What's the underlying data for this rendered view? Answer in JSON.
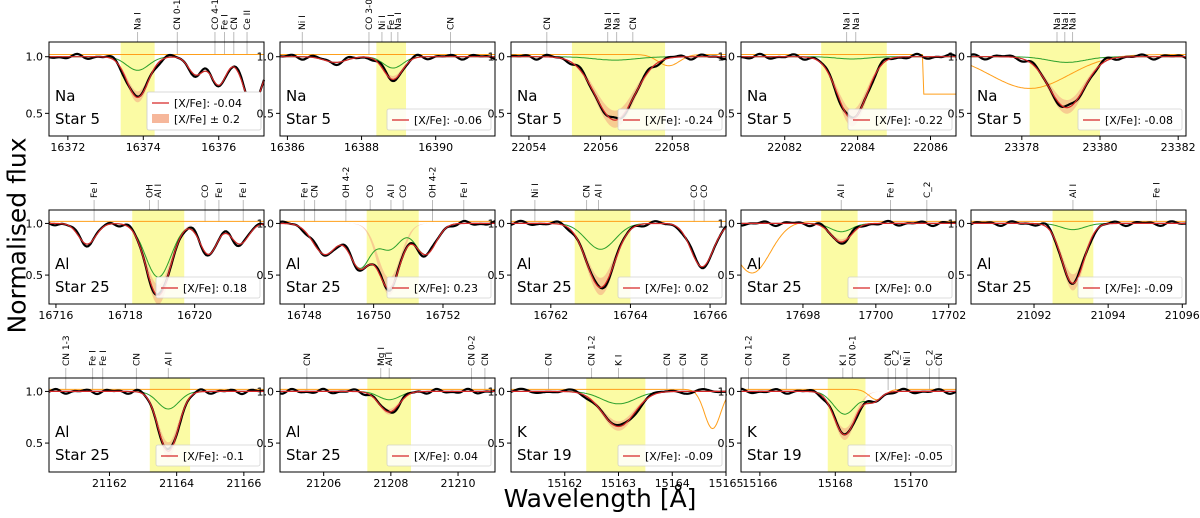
{
  "figure": {
    "xlabel": "Wavelength [Å]",
    "ylabel": "Normalised flux",
    "legend_label_errband": "[X/Fe] ± 0.2",
    "colors": {
      "observed": "#000000",
      "fit": "#d62728",
      "band": "#f4a582",
      "green": "#2ca02c",
      "orange": "#ff9f1a",
      "highlight": "#fbfba4"
    }
  },
  "chart_data": [
    {
      "type": "line",
      "element": "Na",
      "star": "Star 5",
      "legend": "[X/Fe]: -0.04",
      "show_band_legend": true,
      "xlim": [
        16371.5,
        16377.2
      ],
      "xticks": [
        16372,
        16374,
        16376
      ],
      "ylim": [
        0.3,
        1.13
      ],
      "yticks": [
        0.5,
        1.0
      ],
      "highlight": [
        16373.4,
        16374.3
      ],
      "line_center": 16373.85,
      "depth": 0.36,
      "width": 0.28,
      "lines": [
        {
          "label": "Na I",
          "x": 16373.85
        },
        {
          "label": "CN 0-1",
          "x": 16374.9
        },
        {
          "label": "CO 4-1",
          "x": 16375.9
        },
        {
          "label": "Fe I",
          "x": 16376.15
        },
        {
          "label": "CN",
          "x": 16376.4
        },
        {
          "label": "Ce II",
          "x": 16376.75
        }
      ],
      "extra": [
        {
          "x": 16375.4,
          "d": 0.16,
          "w": 0.2
        },
        {
          "x": 16376.0,
          "d": 0.25,
          "w": 0.2
        },
        {
          "x": 16376.9,
          "d": 0.42,
          "w": 0.25
        }
      ],
      "green_depth": 0.12,
      "orange_feature": null
    },
    {
      "type": "line",
      "element": "Na",
      "star": "Star 5",
      "legend": "[X/Fe]: -0.06",
      "show_band_legend": false,
      "xlim": [
        16385.8,
        16391.6
      ],
      "xticks": [
        16386,
        16388,
        16390
      ],
      "ylim": [
        0.3,
        1.13
      ],
      "yticks": [
        0.5,
        1.0
      ],
      "highlight": [
        16388.4,
        16389.2
      ],
      "line_center": 16388.85,
      "depth": 0.2,
      "width": 0.25,
      "lines": [
        {
          "label": "Ni I",
          "x": 16386.4
        },
        {
          "label": "CO 3-0",
          "x": 16388.2
        },
        {
          "label": "Ni I",
          "x": 16388.55
        },
        {
          "label": "Fe I",
          "x": 16388.8
        },
        {
          "label": "Na I",
          "x": 16388.98
        },
        {
          "label": "CN",
          "x": 16390.4
        }
      ],
      "extra": [
        {
          "x": 16387.3,
          "d": 0.05,
          "w": 0.3
        }
      ],
      "green_depth": 0.1,
      "orange_feature": null
    },
    {
      "type": "line",
      "element": "Na",
      "star": "Star 5",
      "legend": "[X/Fe]: -0.24",
      "show_band_legend": false,
      "xlim": [
        22053.5,
        22059.5
      ],
      "xticks": [
        22054,
        22056,
        22058
      ],
      "ylim": [
        0.3,
        1.13
      ],
      "yticks": [
        0.5,
        1.0
      ],
      "highlight": [
        22055.2,
        22057.8
      ],
      "line_center": 22056.4,
      "depth": 0.56,
      "width": 0.55,
      "lines": [
        {
          "label": "CN",
          "x": 22054.5
        },
        {
          "label": "Na I",
          "x": 22056.2
        },
        {
          "label": "Na I",
          "x": 22056.45
        },
        {
          "label": "CN",
          "x": 22056.9
        }
      ],
      "extra": [],
      "green_depth": 0.03,
      "orange_feature": {
        "x": 22057.9,
        "d": 0.1,
        "w": 0.3
      }
    },
    {
      "type": "line",
      "element": "Na",
      "star": "Star 5",
      "legend": "[X/Fe]: -0.22",
      "show_band_legend": false,
      "xlim": [
        22080.8,
        22086.7
      ],
      "xticks": [
        22082,
        22084,
        22086
      ],
      "ylim": [
        0.3,
        1.13
      ],
      "yticks": [
        0.5,
        1.0
      ],
      "highlight": [
        22083.0,
        22084.8
      ],
      "line_center": 22083.85,
      "depth": 0.55,
      "width": 0.4,
      "lines": [
        {
          "label": "Na I",
          "x": 22083.7
        },
        {
          "label": "Na I",
          "x": 22083.95
        }
      ],
      "extra": [],
      "green_depth": 0.02,
      "orange_feature": {
        "x": 22085.8,
        "d": 0.35,
        "w": 0.0,
        "step": true
      }
    },
    {
      "type": "line",
      "element": "Na",
      "star": "Star 5",
      "legend": "[X/Fe]: -0.08",
      "show_band_legend": false,
      "xlim": [
        23376.7,
        23382.2
      ],
      "xticks": [
        23378,
        23380,
        23382
      ],
      "ylim": [
        0.3,
        1.13
      ],
      "yticks": [
        0.5,
        1.0
      ],
      "highlight": [
        23378.2,
        23380.0
      ],
      "line_center": 23379.15,
      "depth": 0.45,
      "width": 0.45,
      "lines": [
        {
          "label": "Na I",
          "x": 23378.9
        },
        {
          "label": "Na I",
          "x": 23379.1
        },
        {
          "label": "Na I",
          "x": 23379.3
        }
      ],
      "extra": [],
      "green_depth": 0.05,
      "orange_feature": {
        "x": 23378.2,
        "d": 0.3,
        "w": 1.0
      }
    },
    {
      "type": "line",
      "element": "Al",
      "star": "Star 25",
      "legend": "[X/Fe]: 0.18",
      "show_band_legend": false,
      "xlim": [
        16715.8,
        16722.0
      ],
      "xticks": [
        16716,
        16718,
        16720
      ],
      "ylim": [
        0.22,
        1.13
      ],
      "yticks": [
        0.5,
        1.0
      ],
      "highlight": [
        16718.2,
        16719.7
      ],
      "line_center": 16718.95,
      "depth": 0.7,
      "width": 0.35,
      "lines": [
        {
          "label": "Fe I",
          "x": 16717.1
        },
        {
          "label": "OH",
          "x": 16718.7
        },
        {
          "label": "Al I",
          "x": 16718.95
        },
        {
          "label": "CO",
          "x": 16720.3
        },
        {
          "label": "Fe I",
          "x": 16720.7
        },
        {
          "label": "Fe I",
          "x": 16721.4
        }
      ],
      "extra": [
        {
          "x": 16716.9,
          "d": 0.2,
          "w": 0.25
        },
        {
          "x": 16720.4,
          "d": 0.3,
          "w": 0.25
        },
        {
          "x": 16721.3,
          "d": 0.2,
          "w": 0.25
        }
      ],
      "green_depth": 0.52,
      "orange_feature": null
    },
    {
      "type": "line",
      "element": "Al",
      "star": "Star 25",
      "legend": "[X/Fe]: 0.23",
      "show_band_legend": false,
      "xlim": [
        16747.3,
        16753.5
      ],
      "xticks": [
        16748,
        16750,
        16752
      ],
      "ylim": [
        0.22,
        1.13
      ],
      "yticks": [
        0.5,
        1.0
      ],
      "highlight": [
        16749.8,
        16751.3
      ],
      "line_center": 16750.45,
      "depth": 0.62,
      "width": 0.32,
      "lines": [
        {
          "label": "Fe I",
          "x": 16748.0
        },
        {
          "label": "CN",
          "x": 16748.3
        },
        {
          "label": "OH 4-2",
          "x": 16749.2
        },
        {
          "label": "CO",
          "x": 16749.9
        },
        {
          "label": "Al I",
          "x": 16750.5
        },
        {
          "label": "CO",
          "x": 16750.85
        },
        {
          "label": "OH 4-2",
          "x": 16751.7
        },
        {
          "label": "Fe I",
          "x": 16752.6
        }
      ],
      "extra": [
        {
          "x": 16748.6,
          "d": 0.3,
          "w": 0.35
        },
        {
          "x": 16749.6,
          "d": 0.42,
          "w": 0.3
        },
        {
          "x": 16751.5,
          "d": 0.3,
          "w": 0.3
        }
      ],
      "green_depth": 0.25,
      "orange_feature": null
    },
    {
      "type": "line",
      "element": "Al",
      "star": "Star 25",
      "legend": "[X/Fe]: 0.02",
      "show_band_legend": false,
      "xlim": [
        16761.0,
        16766.4
      ],
      "xticks": [
        16762,
        16764,
        16766
      ],
      "ylim": [
        0.22,
        1.13
      ],
      "yticks": [
        0.5,
        1.0
      ],
      "highlight": [
        16762.6,
        16764.0
      ],
      "line_center": 16763.25,
      "depth": 0.62,
      "width": 0.35,
      "lines": [
        {
          "label": "Ni I",
          "x": 16761.6
        },
        {
          "label": "CN",
          "x": 16762.9
        },
        {
          "label": "Al I",
          "x": 16763.2
        },
        {
          "label": "CO",
          "x": 16765.6
        },
        {
          "label": "CO",
          "x": 16765.85
        }
      ],
      "extra": [
        {
          "x": 16765.8,
          "d": 0.42,
          "w": 0.28
        }
      ],
      "green_depth": 0.25,
      "orange_feature": null
    },
    {
      "type": "line",
      "element": "Al",
      "star": "Star 25",
      "legend": "[X/Fe]: 0.0",
      "show_band_legend": false,
      "xlim": [
        17696.3,
        17702.2
      ],
      "xticks": [
        17698,
        17700,
        17702
      ],
      "ylim": [
        0.22,
        1.13
      ],
      "yticks": [
        0.5,
        1.0
      ],
      "highlight": [
        17698.5,
        17699.5
      ],
      "line_center": 17699.05,
      "depth": 0.18,
      "width": 0.28,
      "lines": [
        {
          "label": "Al I",
          "x": 17699.05
        },
        {
          "label": "Fe I",
          "x": 17700.4
        },
        {
          "label": "C_2",
          "x": 17701.4
        }
      ],
      "extra": [],
      "green_depth": 0.08,
      "orange_feature": {
        "x": 17696.6,
        "d": 0.5,
        "w": 0.5
      }
    },
    {
      "type": "line",
      "element": "Al",
      "star": "Star 25",
      "legend": "[X/Fe]: -0.09",
      "show_band_legend": false,
      "xlim": [
        21090.3,
        21096.1
      ],
      "xticks": [
        21092,
        21094,
        21096
      ],
      "ylim": [
        0.22,
        1.13
      ],
      "yticks": [
        0.5,
        1.0
      ],
      "highlight": [
        21092.5,
        21093.6
      ],
      "line_center": 21093.05,
      "depth": 0.58,
      "width": 0.3,
      "lines": [
        {
          "label": "Al I",
          "x": 21093.05
        },
        {
          "label": "Fe I",
          "x": 21095.3
        }
      ],
      "extra": [],
      "green_depth": 0.06,
      "orange_feature": null
    },
    {
      "type": "line",
      "element": "Al",
      "star": "Star 25",
      "legend": "[X/Fe]: -0.1",
      "show_band_legend": false,
      "xlim": [
        21160.2,
        21166.6
      ],
      "xticks": [
        21162,
        21164,
        21166
      ],
      "ylim": [
        0.22,
        1.13
      ],
      "yticks": [
        0.5,
        1.0
      ],
      "highlight": [
        21163.2,
        21164.4
      ],
      "line_center": 21163.75,
      "depth": 0.58,
      "width": 0.3,
      "lines": [
        {
          "label": "CN 1-3",
          "x": 21160.7
        },
        {
          "label": "Fe I",
          "x": 21161.5
        },
        {
          "label": "Fe I",
          "x": 21161.8
        },
        {
          "label": "CN",
          "x": 21162.8
        },
        {
          "label": "Al I",
          "x": 21163.75
        }
      ],
      "extra": [],
      "green_depth": 0.17,
      "orange_feature": null
    },
    {
      "type": "line",
      "element": "Al",
      "star": "Star 25",
      "legend": "[X/Fe]: 0.04",
      "show_band_legend": false,
      "xlim": [
        21204.7,
        21211.1
      ],
      "xticks": [
        21206,
        21208,
        21210
      ],
      "ylim": [
        0.22,
        1.13
      ],
      "yticks": [
        0.5,
        1.0
      ],
      "highlight": [
        21207.3,
        21208.6
      ],
      "line_center": 21207.95,
      "depth": 0.2,
      "width": 0.3,
      "lines": [
        {
          "label": "CN",
          "x": 21205.5
        },
        {
          "label": "Mg I",
          "x": 21207.7
        },
        {
          "label": "Al I",
          "x": 21207.95
        },
        {
          "label": "CN 0-2",
          "x": 21210.4
        },
        {
          "label": "CN",
          "x": 21210.8
        }
      ],
      "extra": [],
      "green_depth": 0.08,
      "orange_feature": null
    },
    {
      "type": "line",
      "element": "K",
      "star": "Star 19",
      "legend": "[X/Fe]: -0.09",
      "show_band_legend": false,
      "xlim": [
        15161.0,
        15165.0
      ],
      "xticks": [
        15162,
        15163,
        15164,
        15165
      ],
      "ylim": [
        0.22,
        1.13
      ],
      "yticks": [
        0.5,
        1.0
      ],
      "highlight": [
        15162.4,
        15163.5
      ],
      "line_center": 15163.0,
      "depth": 0.34,
      "width": 0.3,
      "lines": [
        {
          "label": "CN",
          "x": 15161.7
        },
        {
          "label": "CN 1-2",
          "x": 15162.5
        },
        {
          "label": "K I",
          "x": 15163.0
        },
        {
          "label": "CN",
          "x": 15163.9
        },
        {
          "label": "CN",
          "x": 15164.2
        },
        {
          "label": "CN",
          "x": 15164.6
        }
      ],
      "extra": [],
      "green_depth": 0.12,
      "orange_feature": {
        "x": 15164.75,
        "d": 0.38,
        "w": 0.15
      }
    },
    {
      "type": "line",
      "element": "K",
      "star": "Star 19",
      "legend": "[X/Fe]: -0.05",
      "show_band_legend": false,
      "xlim": [
        15165.5,
        15171.2
      ],
      "xticks": [
        15166,
        15168,
        15170
      ],
      "ylim": [
        0.22,
        1.13
      ],
      "yticks": [
        0.5,
        1.0
      ],
      "highlight": [
        15167.8,
        15168.8
      ],
      "line_center": 15168.25,
      "depth": 0.42,
      "width": 0.28,
      "lines": [
        {
          "label": "CN 1-2",
          "x": 15165.7
        },
        {
          "label": "CN",
          "x": 15166.7
        },
        {
          "label": "K I",
          "x": 15168.2
        },
        {
          "label": "CN 0-1",
          "x": 15168.45
        },
        {
          "label": "CN",
          "x": 15169.4
        },
        {
          "label": "C_2",
          "x": 15169.6
        },
        {
          "label": "Ni I",
          "x": 15169.9
        },
        {
          "label": "C_2",
          "x": 15170.5
        },
        {
          "label": "CN",
          "x": 15170.75
        }
      ],
      "extra": [
        {
          "x": 15169.0,
          "d": 0.1,
          "w": 0.2
        }
      ],
      "green_depth": 0.22,
      "orange_feature": {
        "x": 15169.1,
        "d": 0.1,
        "w": 0.2
      }
    }
  ]
}
